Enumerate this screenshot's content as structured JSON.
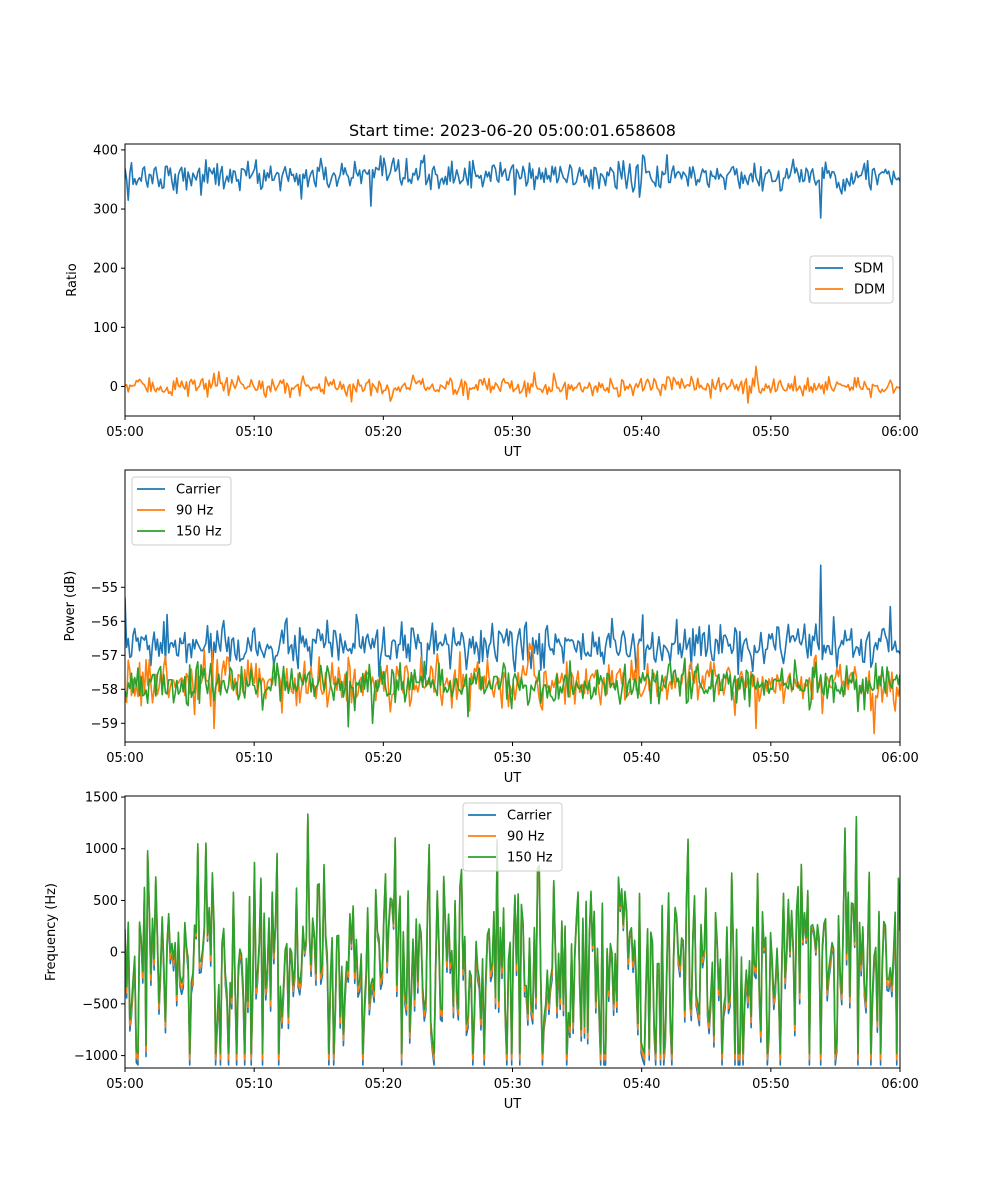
{
  "figure": {
    "title": "Start time: 2023-06-20 05:00:01.658608"
  },
  "chart_data": [
    {
      "type": "line",
      "xlabel": "UT",
      "ylabel": "Ratio",
      "x_range": [
        "05:00",
        "06:00"
      ],
      "x_ticks": [
        "05:00",
        "05:10",
        "05:20",
        "05:30",
        "05:40",
        "05:50",
        "06:00"
      ],
      "ylim": [
        -50,
        410
      ],
      "y_ticks": [
        0,
        100,
        200,
        300,
        400
      ],
      "legend_position": "center-right",
      "series": [
        {
          "name": "SDM",
          "color": "#1f77b4",
          "mean": 356,
          "spread": 13,
          "dips": [
            [
              0.2,
              315
            ],
            [
              13.6,
              317
            ],
            [
              19.0,
              305
            ],
            [
              53.8,
              285
            ]
          ]
        },
        {
          "name": "DDM",
          "color": "#ff7f0e",
          "mean": 0,
          "spread": 8,
          "peaks": [
            [
              48.8,
              34
            ],
            [
              6.9,
              22
            ],
            [
              33.2,
              22
            ]
          ],
          "dips": [
            [
              48.2,
              -28
            ],
            [
              17.5,
              -26
            ],
            [
              20.5,
              -25
            ]
          ]
        }
      ]
    },
    {
      "type": "line",
      "xlabel": "UT",
      "ylabel": "Power (dB)",
      "x_range": [
        "05:00",
        "06:00"
      ],
      "x_ticks": [
        "05:00",
        "05:10",
        "05:20",
        "05:30",
        "05:40",
        "05:50",
        "06:00"
      ],
      "ylim": [
        -59.55,
        -51.55
      ],
      "y_ticks": [
        "−59",
        "−58",
        "−57",
        "−56",
        "−55"
      ],
      "legend_position": "top-left",
      "series": [
        {
          "name": "Carrier",
          "color": "#1f77b4",
          "mean": -56.75,
          "spread": 0.32,
          "peaks": [
            [
              0.05,
              -55.3
            ],
            [
              3.3,
              -55.8
            ],
            [
              53.8,
              -54.35
            ]
          ]
        },
        {
          "name": "90 Hz",
          "color": "#ff7f0e",
          "mean": -57.8,
          "spread": 0.35,
          "dips": [
            [
              6.9,
              -59.15
            ],
            [
              48.9,
              -59.15
            ],
            [
              58.0,
              -59.3
            ]
          ]
        },
        {
          "name": "150 Hz",
          "color": "#2ca02c",
          "mean": -57.85,
          "spread": 0.3,
          "dips": [
            [
              17.3,
              -59.1
            ],
            [
              19.2,
              -59.0
            ],
            [
              56.7,
              -58.65
            ]
          ]
        }
      ]
    },
    {
      "type": "line",
      "xlabel": "UT",
      "ylabel": "Frequency (Hz)",
      "x_range": [
        "05:00",
        "06:00"
      ],
      "x_ticks": [
        "05:00",
        "05:10",
        "05:20",
        "05:30",
        "05:40",
        "05:50",
        "06:00"
      ],
      "ylim": [
        -1120,
        1510
      ],
      "y_ticks": [
        "−1000",
        "−500",
        "0",
        "500",
        "1000",
        "1500"
      ],
      "legend_position": "top-center",
      "series": [
        {
          "name": "Carrier",
          "color": "#1f77b4",
          "offset": -110
        },
        {
          "name": "90 Hz",
          "color": "#ff7f0e",
          "offset": -60
        },
        {
          "name": "150 Hz",
          "color": "#2ca02c",
          "offset": 0,
          "range": [
            -980,
            1340
          ],
          "peaks": [
            [
              14.2,
              1335
            ],
            [
              56.6,
              1310
            ],
            [
              55.7,
              1200
            ],
            [
              1.75,
              980
            ],
            [
              23.5,
              1040
            ]
          ]
        }
      ]
    }
  ]
}
